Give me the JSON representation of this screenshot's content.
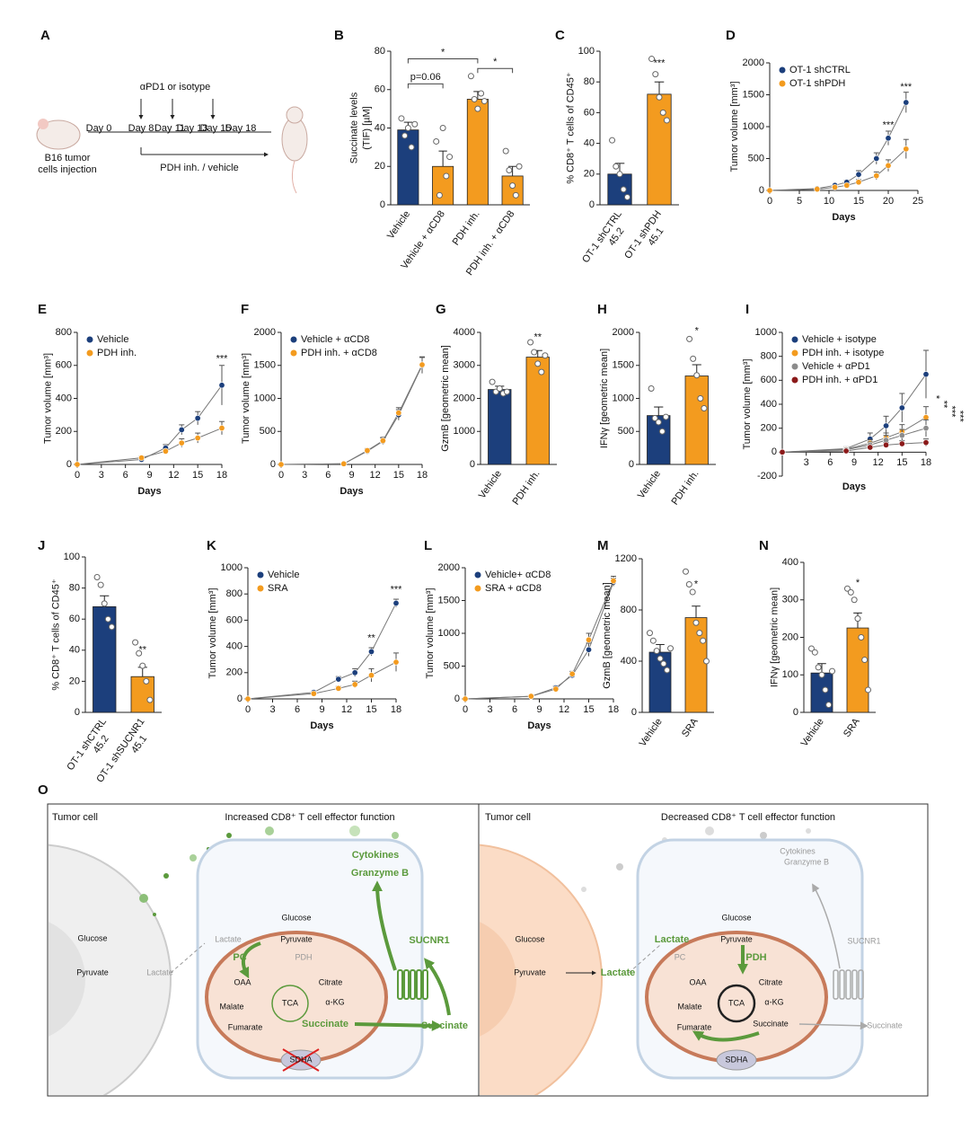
{
  "panel_labels": [
    "A",
    "B",
    "C",
    "D",
    "E",
    "F",
    "G",
    "H",
    "I",
    "J",
    "K",
    "L",
    "M",
    "N",
    "O"
  ],
  "timeline": {
    "treatment": "αPD1 or isotype",
    "days": [
      "Day 0",
      "Day 8",
      "Day 11",
      "Day 13",
      "Day 15",
      "Day 18"
    ],
    "drug": "PDH inh. / vehicle",
    "injection": [
      "B16 tumor",
      "cells injection"
    ]
  },
  "chart_data": [
    {
      "type": "bar",
      "ylabel": [
        "Succinate levels",
        "(TIF) [µM]"
      ],
      "categories": [
        "Vehicle",
        "Vehicle + αCD8",
        "PDH inh.",
        "PDH inh. + αCD8"
      ],
      "values": [
        39,
        20,
        55,
        15
      ],
      "errors": [
        4,
        8,
        4,
        5
      ],
      "colors": [
        "#1c3f7c",
        "#f39b1f",
        "#f39b1f",
        "#f39b1f"
      ],
      "points": [
        [
          45,
          36,
          40,
          30,
          42
        ],
        [
          33,
          5,
          40,
          15,
          25
        ],
        [
          67,
          55,
          50,
          58,
          54
        ],
        [
          28,
          18,
          10,
          5,
          20
        ]
      ],
      "ylim": [
        0,
        80
      ],
      "yticks": [
        0,
        20,
        40,
        60,
        80
      ],
      "annotations": [
        {
          "text": "p=0.06",
          "from": "Vehicle",
          "to": "Vehicle + αCD8",
          "y": 63
        },
        {
          "text": "*",
          "from": "Vehicle",
          "to": "PDH inh.",
          "y": 76
        },
        {
          "text": "*",
          "from": "PDH inh.",
          "to": "PDH inh. + αCD8",
          "y": 71
        }
      ]
    },
    {
      "type": "bar",
      "ylabel": "% CD8⁺ T cells of CD45⁺",
      "categories": [
        "OT-1 shCTRL",
        "OT-1 shPDH"
      ],
      "sublabels": [
        "45.2",
        "45.1"
      ],
      "values": [
        20,
        72
      ],
      "errors": [
        7,
        8
      ],
      "colors": [
        "#1c3f7c",
        "#f39b1f"
      ],
      "points": [
        [
          42,
          25,
          20,
          10,
          5
        ],
        [
          95,
          85,
          70,
          60,
          55
        ]
      ],
      "ylim": [
        0,
        100
      ],
      "yticks": [
        0,
        20,
        40,
        60,
        80,
        100
      ],
      "annotations": [
        {
          "text": "***",
          "category": "OT-1 shPDH",
          "y": 92
        }
      ]
    },
    {
      "type": "line",
      "ylabel": "Tumor volume [mm³]",
      "xlabel": "Days",
      "x": [
        0,
        8,
        11,
        13,
        15,
        18,
        20,
        23
      ],
      "series": [
        {
          "name": "OT-1 shCTRL",
          "color": "#1c3f7c",
          "values": [
            0,
            30,
            80,
            130,
            250,
            500,
            820,
            1380
          ],
          "errors": [
            0,
            10,
            20,
            30,
            60,
            90,
            110,
            160
          ]
        },
        {
          "name": "OT-1 shPDH",
          "color": "#f39b1f",
          "values": [
            0,
            20,
            50,
            80,
            130,
            230,
            390,
            650
          ],
          "errors": [
            0,
            10,
            15,
            25,
            40,
            60,
            90,
            150
          ]
        }
      ],
      "xlim": [
        0,
        25
      ],
      "xticks": [
        0,
        5,
        10,
        15,
        20,
        25
      ],
      "ylim": [
        0,
        2000
      ],
      "yticks": [
        0,
        500,
        1000,
        1500,
        2000
      ],
      "legend": "upper left",
      "annotations": [
        {
          "text": "***",
          "x": 20,
          "y": 1020
        },
        {
          "text": "***",
          "x": 23,
          "y": 1620
        }
      ]
    },
    {
      "type": "line",
      "ylabel": "Tumor volume [mm³]",
      "xlabel": "Days",
      "x": [
        0,
        8,
        11,
        13,
        15,
        18
      ],
      "series": [
        {
          "name": "Vehicle",
          "color": "#1c3f7c",
          "values": [
            0,
            30,
            100,
            210,
            280,
            480
          ],
          "errors": [
            0,
            10,
            20,
            30,
            40,
            120
          ]
        },
        {
          "name": "PDH inh.",
          "color": "#f39b1f",
          "values": [
            0,
            40,
            80,
            130,
            160,
            220
          ],
          "errors": [
            0,
            10,
            15,
            25,
            30,
            40
          ]
        }
      ],
      "xlim": [
        0,
        18
      ],
      "xticks": [
        0,
        3,
        6,
        9,
        12,
        15,
        18
      ],
      "ylim": [
        0,
        800
      ],
      "yticks": [
        0,
        200,
        400,
        600,
        800
      ],
      "legend": "upper left",
      "annotations": [
        {
          "text": "***",
          "x": 18,
          "y": 640
        }
      ]
    },
    {
      "type": "line",
      "ylabel": "Tumor volume [mm³]",
      "xlabel": "Days",
      "x": [
        0,
        8,
        11,
        13,
        15,
        18
      ],
      "series": [
        {
          "name": "Vehicle + αCD8",
          "color": "#1c3f7c",
          "values": [
            0,
            10,
            200,
            350,
            750,
            1500
          ],
          "errors": [
            0,
            5,
            30,
            50,
            80,
            120
          ]
        },
        {
          "name": "PDH inh. + αCD8",
          "color": "#f39b1f",
          "values": [
            0,
            10,
            210,
            360,
            780,
            1510
          ],
          "errors": [
            0,
            5,
            30,
            50,
            80,
            120
          ]
        }
      ],
      "xlim": [
        0,
        18
      ],
      "xticks": [
        0,
        3,
        6,
        9,
        12,
        15,
        18
      ],
      "ylim": [
        0,
        2000
      ],
      "yticks": [
        0,
        500,
        1000,
        1500,
        2000
      ],
      "legend": "upper left"
    },
    {
      "type": "bar",
      "ylabel": "GzmB [geometric mean]",
      "categories": [
        "Vehicle",
        "PDH inh."
      ],
      "values": [
        2270,
        3250
      ],
      "errors": [
        100,
        200
      ],
      "colors": [
        "#1c3f7c",
        "#f39b1f"
      ],
      "points": [
        [
          2500,
          2200,
          2300,
          2150,
          2200
        ],
        [
          3700,
          3400,
          3050,
          2800,
          3300
        ]
      ],
      "ylim": [
        0,
        4000
      ],
      "yticks": [
        0,
        1000,
        2000,
        3000,
        4000
      ],
      "annotations": [
        {
          "text": "**",
          "category": "PDH inh.",
          "y": 3850
        }
      ]
    },
    {
      "type": "bar",
      "ylabel": "IFNγ [geometric mean]",
      "categories": [
        "Vehicle",
        "PDH inh."
      ],
      "values": [
        740,
        1340
      ],
      "errors": [
        130,
        170
      ],
      "colors": [
        "#1c3f7c",
        "#f39b1f"
      ],
      "points": [
        [
          1150,
          700,
          640,
          500,
          720
        ],
        [
          1900,
          1600,
          1350,
          1000,
          850
        ]
      ],
      "ylim": [
        0,
        2000
      ],
      "yticks": [
        0,
        500,
        1000,
        1500,
        2000
      ],
      "annotations": [
        {
          "text": "*",
          "category": "PDH inh.",
          "y": 2020
        }
      ]
    },
    {
      "type": "line",
      "ylabel": "Tumor volume [mm³]",
      "xlabel": "Days",
      "x": [
        0,
        8,
        11,
        13,
        15,
        18
      ],
      "series": [
        {
          "name": "Vehicle + isotype",
          "color": "#1c3f7c",
          "values": [
            0,
            30,
            110,
            220,
            370,
            650
          ],
          "errors": [
            0,
            15,
            50,
            80,
            120,
            200
          ]
        },
        {
          "name": "PDH inh. + isotype",
          "color": "#f39b1f",
          "values": [
            0,
            25,
            75,
            120,
            170,
            290
          ],
          "errors": [
            0,
            10,
            30,
            40,
            60,
            90
          ]
        },
        {
          "name": "Vehicle + αPD1",
          "color": "#8c8c8c",
          "values": [
            0,
            20,
            60,
            100,
            140,
            200
          ],
          "errors": [
            0,
            10,
            25,
            40,
            50,
            70
          ]
        },
        {
          "name": "PDH inh. + αPD1",
          "color": "#8b1a1a",
          "values": [
            0,
            10,
            40,
            60,
            70,
            80
          ],
          "errors": [
            0,
            5,
            15,
            20,
            25,
            30
          ]
        }
      ],
      "xlim": [
        0,
        18
      ],
      "xticks": [
        3,
        6,
        9,
        12,
        15,
        18
      ],
      "ylim": [
        -200,
        1000
      ],
      "yticks": [
        -200,
        0,
        200,
        400,
        600,
        800,
        1000
      ],
      "legend": "upper left",
      "annotations": [
        {
          "text": "*",
          "x": 19.2,
          "y": 460,
          "vertical": true
        },
        {
          "text": "**",
          "x": 20.2,
          "y": 400,
          "vertical": true
        },
        {
          "text": "***",
          "x": 21.2,
          "y": 340,
          "vertical": true
        },
        {
          "text": "***",
          "x": 22.2,
          "y": 300,
          "vertical": true
        }
      ]
    },
    {
      "type": "bar",
      "ylabel": "% CD8⁺ T cells of CD45⁺",
      "categories": [
        "OT-1 shCTRL",
        "OT-1 shSUCNR1"
      ],
      "sublabels": [
        "45.2",
        "45.1"
      ],
      "values": [
        68,
        23
      ],
      "errors": [
        7,
        6
      ],
      "colors": [
        "#1c3f7c",
        "#f39b1f"
      ],
      "points": [
        [
          87,
          82,
          70,
          60,
          55
        ],
        [
          45,
          38,
          30,
          20,
          8
        ]
      ],
      "ylim": [
        0,
        100
      ],
      "yticks": [
        0,
        20,
        40,
        60,
        80,
        100
      ],
      "annotations": [
        {
          "text": "**",
          "category": "OT-1 shSUCNR1",
          "y": 40
        }
      ]
    },
    {
      "type": "line",
      "ylabel": "Tumor volume [mm³]",
      "xlabel": "Days",
      "x": [
        0,
        8,
        11,
        13,
        15,
        18
      ],
      "series": [
        {
          "name": "Vehicle",
          "color": "#1c3f7c",
          "values": [
            0,
            50,
            150,
            200,
            360,
            730
          ],
          "errors": [
            0,
            10,
            20,
            30,
            30,
            30
          ]
        },
        {
          "name": "SRA",
          "color": "#f39b1f",
          "values": [
            0,
            40,
            80,
            110,
            180,
            280
          ],
          "errors": [
            0,
            10,
            15,
            25,
            50,
            70
          ]
        }
      ],
      "xlim": [
        0,
        18
      ],
      "xticks": [
        0,
        3,
        6,
        9,
        12,
        15,
        18
      ],
      "ylim": [
        0,
        1000
      ],
      "yticks": [
        0,
        200,
        400,
        600,
        800,
        1000
      ],
      "legend": "upper left",
      "annotations": [
        {
          "text": "**",
          "x": 15,
          "y": 460
        },
        {
          "text": "***",
          "x": 18,
          "y": 830
        }
      ]
    },
    {
      "type": "line",
      "ylabel": "Tumor volume [mm³]",
      "xlabel": "Days",
      "x": [
        0,
        8,
        11,
        13,
        15,
        18
      ],
      "series": [
        {
          "name": "Vehicle+ αCD8",
          "color": "#1c3f7c",
          "values": [
            0,
            40,
            170,
            360,
            750,
            1780
          ],
          "errors": [
            0,
            10,
            30,
            40,
            100,
            60
          ]
        },
        {
          "name": "SRA + αCD8",
          "color": "#f39b1f",
          "values": [
            0,
            40,
            150,
            380,
            900,
            1800
          ],
          "errors": [
            0,
            10,
            30,
            40,
            100,
            70
          ]
        }
      ],
      "xlim": [
        0,
        18
      ],
      "xticks": [
        0,
        3,
        6,
        9,
        12,
        15,
        18
      ],
      "ylim": [
        0,
        2000
      ],
      "yticks": [
        0,
        500,
        1000,
        1500,
        2000
      ],
      "legend": "upper left"
    },
    {
      "type": "bar",
      "ylabel": "GzmB [geometric mean]",
      "categories": [
        "Vehicle",
        "SRA"
      ],
      "values": [
        470,
        740
      ],
      "errors": [
        60,
        90
      ],
      "colors": [
        "#1c3f7c",
        "#f39b1f"
      ],
      "points": [
        [
          620,
          560,
          480,
          420,
          380,
          330,
          500
        ],
        [
          1100,
          1000,
          940,
          700,
          620,
          560,
          400
        ]
      ],
      "ylim": [
        0,
        1200
      ],
      "yticks": [
        0,
        400,
        800,
        1200
      ],
      "annotations": [
        {
          "text": "*",
          "category": "SRA",
          "y": 1000
        }
      ]
    },
    {
      "type": "bar",
      "ylabel": "IFNγ [geometric mean]",
      "categories": [
        "Vehicle",
        "SRA"
      ],
      "values": [
        105,
        225
      ],
      "errors": [
        25,
        40
      ],
      "colors": [
        "#1c3f7c",
        "#f39b1f"
      ],
      "points": [
        [
          170,
          160,
          120,
          100,
          60,
          20,
          110
        ],
        [
          330,
          320,
          300,
          250,
          200,
          140,
          60
        ]
      ],
      "ylim": [
        0,
        400
      ],
      "yticks": [
        0,
        100,
        200,
        300,
        400
      ],
      "annotations": [
        {
          "text": "*",
          "category": "SRA",
          "y": 345
        }
      ]
    }
  ],
  "diagram": {
    "left": {
      "cell": "Tumor cell",
      "title": "Increased CD8⁺ T cell effector function",
      "labels": [
        "Glucose",
        "Pyruvate",
        "Lactate",
        "Lactate",
        "Glucose",
        "Pyruvate",
        "PDH",
        "PC",
        "Cytokines",
        "Granzyme B",
        "SUCNR1",
        "OAA",
        "Citrate",
        "TCA",
        "Malate",
        "α-KG",
        "Fumarate",
        "Succinate",
        "Succinate",
        "SDHA"
      ]
    },
    "right": {
      "cell": "Tumor cell",
      "title": "Decreased CD8⁺ T cell effector function",
      "labels": [
        "Glucose",
        "Pyruvate",
        "Lactate",
        "Lactate",
        "Glucose",
        "Pyruvate",
        "PDH",
        "PC",
        "Cytokines",
        "Granzyme B",
        "SUCNR1",
        "OAA",
        "Citrate",
        "TCA",
        "Malate",
        "α-KG",
        "Fumarate",
        "Succinate",
        "Succinate",
        "SDHA"
      ]
    }
  }
}
